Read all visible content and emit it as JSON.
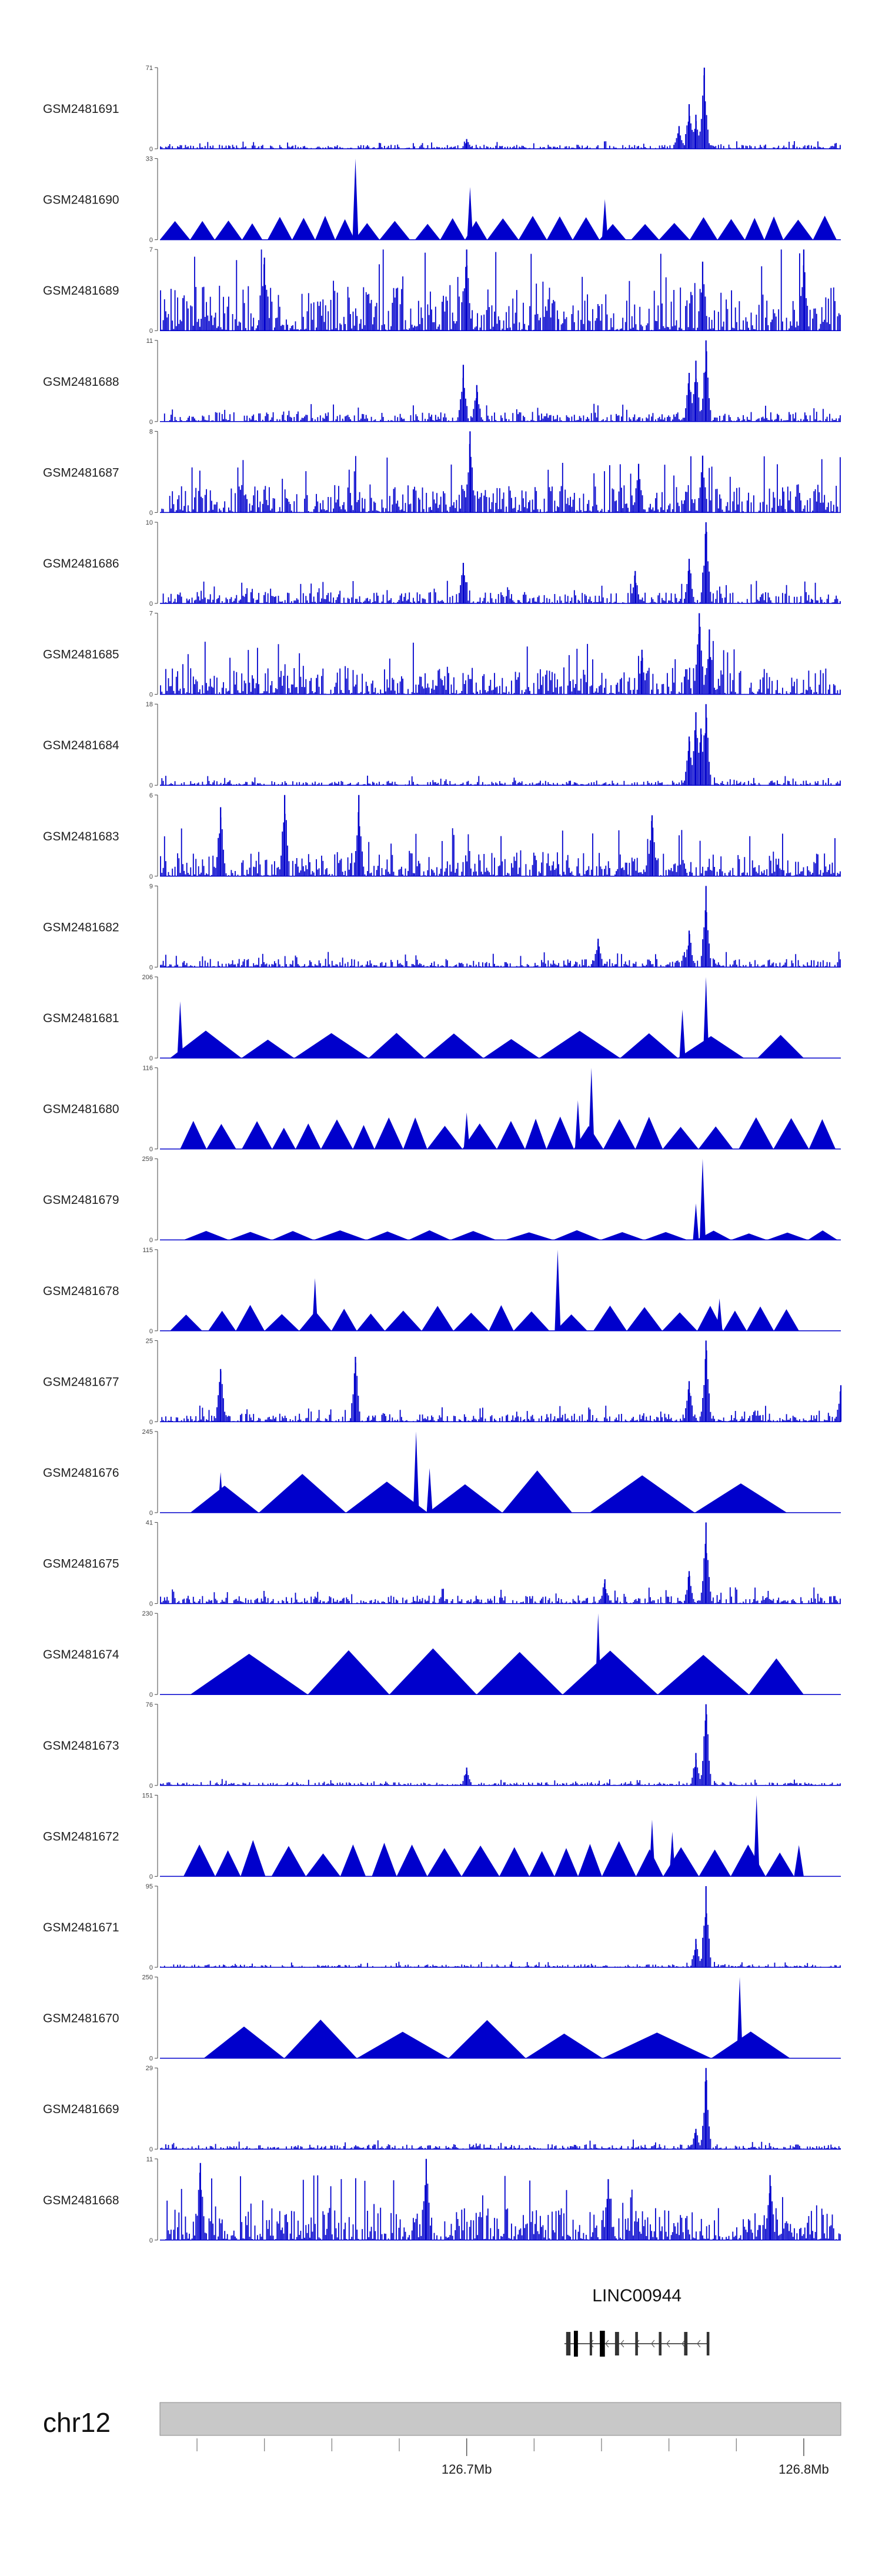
{
  "chart_data": {
    "type": "area",
    "title": "",
    "signal_color": "#0000CC",
    "axis_color": "#444444",
    "ideogram_color": "#C8C8C8",
    "chromosome": "chr12",
    "xrange_mb": [
      126.609,
      126.811
    ],
    "x_ticks": [
      {
        "pos_mb": 126.7,
        "label": "126.7Mb"
      },
      {
        "pos_mb": 126.8,
        "label": "126.8Mb"
      }
    ],
    "x_minor_ticks_mb": [
      126.62,
      126.64,
      126.66,
      126.68,
      126.72,
      126.74,
      126.76,
      126.78
    ],
    "gene": {
      "name": "LINC00944",
      "start_mb": 126.729,
      "end_mb": 126.772,
      "exons": [
        {
          "s": 126.7295,
          "e": 126.7308,
          "strong": false
        },
        {
          "s": 126.7318,
          "e": 126.733,
          "strong": true
        },
        {
          "s": 126.7365,
          "e": 126.7372,
          "strong": false
        },
        {
          "s": 126.7395,
          "e": 126.741,
          "strong": true
        },
        {
          "s": 126.744,
          "e": 126.7452,
          "strong": false
        },
        {
          "s": 126.75,
          "e": 126.7508,
          "strong": false
        },
        {
          "s": 126.757,
          "e": 126.7578,
          "strong": false
        },
        {
          "s": 126.7645,
          "e": 126.7655,
          "strong": false
        },
        {
          "s": 126.7712,
          "e": 126.772,
          "strong": false
        }
      ]
    },
    "series": [
      {
        "name": "GSM2481691",
        "ymax": 71,
        "style": "dense",
        "bg": 0.05,
        "peaks": [
          [
            126.7,
            0.12
          ],
          [
            126.763,
            0.28
          ],
          [
            126.766,
            0.55
          ],
          [
            126.7705,
            1.0
          ],
          [
            126.768,
            0.42
          ]
        ]
      },
      {
        "name": "GSM2481690",
        "ymax": 33,
        "style": "tri",
        "base": 0.3,
        "seg": 0.0075,
        "peaks": [
          [
            126.667,
            1.0
          ],
          [
            126.701,
            0.65
          ],
          [
            126.741,
            0.5
          ]
        ]
      },
      {
        "name": "GSM2481689",
        "ymax": 7,
        "style": "dense",
        "bg": 0.55,
        "peaks": [
          [
            126.64,
            0.9
          ],
          [
            126.7,
            1.0
          ],
          [
            126.77,
            0.85
          ],
          [
            126.8,
            1.0
          ]
        ]
      },
      {
        "name": "GSM2481688",
        "ymax": 11,
        "style": "dense",
        "bg": 0.12,
        "peaks": [
          [
            126.699,
            0.7
          ],
          [
            126.703,
            0.45
          ],
          [
            126.766,
            0.6
          ],
          [
            126.771,
            1.0
          ],
          [
            126.768,
            0.75
          ]
        ]
      },
      {
        "name": "GSM2481687",
        "ymax": 8,
        "style": "dense",
        "bg": 0.35,
        "peaks": [
          [
            126.701,
            1.0
          ],
          [
            126.77,
            0.7
          ],
          [
            126.751,
            0.6
          ]
        ]
      },
      {
        "name": "GSM2481686",
        "ymax": 10,
        "style": "dense",
        "bg": 0.14,
        "peaks": [
          [
            126.699,
            0.5
          ],
          [
            126.771,
            1.0
          ],
          [
            126.766,
            0.55
          ],
          [
            126.75,
            0.4
          ]
        ]
      },
      {
        "name": "GSM2481685",
        "ymax": 7,
        "style": "dense",
        "bg": 0.33,
        "peaks": [
          [
            126.769,
            1.0
          ],
          [
            126.772,
            0.8
          ],
          [
            126.752,
            0.55
          ]
        ]
      },
      {
        "name": "GSM2481684",
        "ymax": 18,
        "style": "dense",
        "bg": 0.06,
        "peaks": [
          [
            126.766,
            0.6
          ],
          [
            126.768,
            0.9
          ],
          [
            126.771,
            1.0
          ],
          [
            126.7695,
            0.7
          ]
        ]
      },
      {
        "name": "GSM2481683",
        "ymax": 6,
        "style": "dense",
        "bg": 0.3,
        "peaks": [
          [
            126.627,
            0.85
          ],
          [
            126.646,
            1.0
          ],
          [
            126.668,
            1.0
          ],
          [
            126.755,
            0.75
          ]
        ]
      },
      {
        "name": "GSM2481682",
        "ymax": 9,
        "style": "dense",
        "bg": 0.1,
        "peaks": [
          [
            126.771,
            1.0
          ],
          [
            126.766,
            0.45
          ],
          [
            126.739,
            0.35
          ]
        ]
      },
      {
        "name": "GSM2481681",
        "ymax": 206,
        "style": "tri",
        "base": 0.35,
        "seg": 0.02,
        "start": 126.612,
        "end": 126.8,
        "peaks": [
          [
            126.615,
            0.7
          ],
          [
            126.771,
            1.0
          ],
          [
            126.764,
            0.6
          ]
        ]
      },
      {
        "name": "GSM2481680",
        "ymax": 116,
        "style": "tri",
        "base": 0.4,
        "seg": 0.0085,
        "start": 126.615,
        "end": 126.81,
        "peaks": [
          [
            126.7,
            0.45
          ],
          [
            126.737,
            1.0
          ],
          [
            126.733,
            0.6
          ]
        ]
      },
      {
        "name": "GSM2481679",
        "ymax": 259,
        "style": "tri",
        "base": 0.12,
        "seg": 0.013,
        "start": 126.616,
        "end": 126.81,
        "peaks": [
          [
            126.77,
            1.0
          ],
          [
            126.768,
            0.45
          ]
        ]
      },
      {
        "name": "GSM2481678",
        "ymax": 115,
        "style": "tri",
        "base": 0.32,
        "seg": 0.009,
        "start": 126.612,
        "end": 126.8,
        "peaks": [
          [
            126.655,
            0.65
          ],
          [
            126.727,
            1.0
          ],
          [
            126.775,
            0.4
          ]
        ]
      },
      {
        "name": "GSM2481677",
        "ymax": 25,
        "style": "dense",
        "bg": 0.1,
        "peaks": [
          [
            126.627,
            0.65
          ],
          [
            126.667,
            0.8
          ],
          [
            126.771,
            1.0
          ],
          [
            126.766,
            0.5
          ],
          [
            126.811,
            0.45
          ]
        ]
      },
      {
        "name": "GSM2481676",
        "ymax": 245,
        "style": "tri",
        "base": 0.55,
        "seg": 0.026,
        "start": 126.618,
        "end": 126.795,
        "peaks": [
          [
            126.627,
            0.5
          ],
          [
            126.685,
            1.0
          ],
          [
            126.689,
            0.55
          ]
        ]
      },
      {
        "name": "GSM2481675",
        "ymax": 41,
        "style": "dense",
        "bg": 0.1,
        "peaks": [
          [
            126.771,
            1.0
          ],
          [
            126.766,
            0.4
          ],
          [
            126.741,
            0.3
          ]
        ]
      },
      {
        "name": "GSM2481674",
        "ymax": 230,
        "style": "tri",
        "base": 0.6,
        "seg": 0.028,
        "start": 126.618,
        "end": 126.8,
        "peaks": [
          [
            126.739,
            1.0
          ],
          [
            126.742,
            0.5
          ]
        ]
      },
      {
        "name": "GSM2481673",
        "ymax": 76,
        "style": "dense",
        "bg": 0.04,
        "peaks": [
          [
            126.771,
            1.0
          ],
          [
            126.768,
            0.4
          ],
          [
            126.7,
            0.22
          ]
        ]
      },
      {
        "name": "GSM2481672",
        "ymax": 151,
        "style": "tri",
        "base": 0.45,
        "seg": 0.009,
        "start": 126.616,
        "end": 126.8,
        "peaks": [
          [
            126.786,
            1.0
          ],
          [
            126.755,
            0.7
          ],
          [
            126.761,
            0.55
          ]
        ]
      },
      {
        "name": "GSM2481671",
        "ymax": 95,
        "style": "dense",
        "bg": 0.035,
        "peaks": [
          [
            126.771,
            1.0
          ],
          [
            126.768,
            0.35
          ]
        ]
      },
      {
        "name": "GSM2481670",
        "ymax": 250,
        "style": "tri",
        "base": 0.48,
        "seg": 0.028,
        "start": 126.622,
        "end": 126.796,
        "peaks": [
          [
            126.781,
            1.0
          ]
        ]
      },
      {
        "name": "GSM2481669",
        "ymax": 29,
        "style": "dense",
        "bg": 0.06,
        "peaks": [
          [
            126.771,
            1.0
          ],
          [
            126.768,
            0.25
          ]
        ]
      },
      {
        "name": "GSM2481668",
        "ymax": 11,
        "style": "dense",
        "bg": 0.4,
        "peaks": [
          [
            126.621,
            0.95
          ],
          [
            126.688,
            1.0
          ],
          [
            126.742,
            0.75
          ],
          [
            126.79,
            0.8
          ]
        ]
      }
    ]
  }
}
